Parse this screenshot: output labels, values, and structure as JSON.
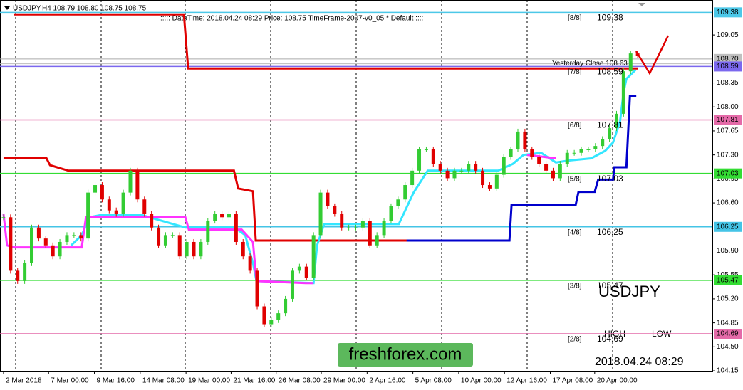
{
  "header": {
    "symbol_line": "USDJPY,H4  108.79 108.80 108.75 108.75",
    "info_line": "::::: DateTime: 2018.04.24 08:29    Price: 108.75    TimeFrame-2007-v0_05    *   Default   ::::"
  },
  "watermark": {
    "symbol": "USDJPY",
    "high": "HIGH",
    "low": "LOW",
    "datetime": "2018.04.24 08:29",
    "brand": "freshforex.com"
  },
  "chart_data": {
    "type": "candlestick",
    "up_color": "#33cc33",
    "down_color": "#e00000",
    "values": [
      106.39,
      105.61,
      105.46,
      105.72,
      106.24,
      106.08,
      105.98,
      105.82,
      106.03,
      106.13,
      106.13,
      106.08,
      106.75,
      106.86,
      106.65,
      106.49,
      106.44,
      106.75,
      107.07,
      106.65,
      106.44,
      106.24,
      105.98,
      106.13,
      106.13,
      105.82,
      106.03,
      105.82,
      106.03,
      106.34,
      106.44,
      106.39,
      106.44,
      106.03,
      105.82,
      105.61,
      105.09,
      104.83,
      104.89,
      104.99,
      105.2,
      105.61,
      105.67,
      105.51,
      106.13,
      106.75,
      106.55,
      106.44,
      106.24,
      106.24,
      106.24,
      106.34,
      105.98,
      106.13,
      106.34,
      106.55,
      106.65,
      106.86,
      107.07,
      107.38,
      107.38,
      107.17,
      107.07,
      106.96,
      107.07,
      107.07,
      107.17,
      107.07,
      106.86,
      106.81,
      107.01,
      107.27,
      107.38,
      107.64,
      107.38,
      107.27,
      107.17,
      107.07,
      106.96,
      107.17,
      107.33,
      107.33,
      107.38,
      107.38,
      107.43,
      107.53,
      107.69,
      107.9,
      108.52,
      108.78,
      108.75
    ],
    "lines": [
      {
        "color": "#e00000",
        "x": [
          1.5,
          25.6,
          26.2,
          90
        ],
        "values": [
          109.35,
          109.35,
          108.56,
          108.56
        ]
      },
      {
        "color": "#e00000",
        "x": [
          0,
          6.1,
          6.6,
          9.2,
          32.7,
          33.3,
          35.4,
          35.8,
          69.3
        ],
        "values": [
          107.25,
          107.25,
          107.15,
          107.07,
          107.07,
          106.81,
          106.77,
          106.05,
          106.05
        ]
      },
      {
        "color": "#0000cc",
        "x": [
          57.2,
          71.8,
          72.1,
          81.2,
          81.6,
          83.9,
          84.4,
          86.5,
          86.7,
          88.4,
          88.9,
          89.8
        ],
        "values": [
          106.05,
          106.05,
          106.57,
          106.57,
          106.76,
          106.76,
          106.94,
          106.94,
          107.12,
          107.12,
          108.16,
          108.16
        ]
      },
      {
        "color": "#33e6ff",
        "x": [
          9.6,
          11.1,
          12.2,
          13.7,
          19.7,
          25.8,
          32.8,
          34.3,
          35.4,
          35.9,
          44.0,
          44.5,
          45.5,
          56.1,
          58.2,
          60.2,
          70.2,
          72.3,
          73.8,
          76.3,
          78.4,
          80.4,
          83.4,
          85.4,
          86.5,
          87.5,
          88.0,
          88.4,
          89.7
        ],
        "values": [
          105.98,
          106.13,
          106.39,
          106.42,
          106.42,
          106.24,
          106.24,
          106.13,
          105.72,
          105.46,
          105.43,
          105.98,
          106.29,
          106.29,
          106.75,
          107.07,
          107.07,
          107.17,
          107.3,
          107.33,
          107.19,
          107.22,
          107.25,
          107.36,
          107.48,
          107.79,
          108.21,
          108.41,
          108.54
        ]
      },
      {
        "color": "#ff33ff",
        "x": [
          0,
          0.5,
          1.5,
          11.1,
          11.7,
          25.8,
          26.3,
          33.8,
          35.4,
          35.9,
          42.9,
          44.0,
          60,
          74.3,
          78.4
        ],
        "values": [
          106.44,
          105.98,
          105.95,
          105.95,
          106.39,
          106.39,
          106.21,
          106.21,
          106.03,
          105.46,
          105.43,
          105.43,
          null,
          107.3,
          107.25
        ]
      }
    ],
    "levels": [
      {
        "name": "[8/8]",
        "value": 109.38,
        "color": "#4cc8e8"
      },
      {
        "name": "[7/8]",
        "value": 108.59,
        "color": "#7b68ee"
      },
      {
        "name": "[6/8]",
        "value": 107.81,
        "color": "#e46aa8"
      },
      {
        "name": "[5/8]",
        "value": 107.03,
        "color": "#33dd33"
      },
      {
        "name": "[4/8]",
        "value": 106.25,
        "color": "#44c4e6"
      },
      {
        "name": "[3/8]",
        "value": 105.47,
        "color": "#33dd33"
      },
      {
        "name": "[2/8]",
        "value": 104.69,
        "color": "#e46aa8"
      }
    ],
    "yesterday_close": {
      "value": 108.63,
      "label": "Yesterday Close 108.63"
    },
    "last_price": {
      "value": 108.7,
      "label": "108.70"
    },
    "xlim": [
      -0.5,
      100.6
    ],
    "xticks": [
      {
        "value": 0,
        "label": "2 Mar 2018"
      },
      {
        "value": 6.4,
        "label": "7 Mar 00:00"
      },
      {
        "value": 12.9,
        "label": "9 Mar 16:00"
      },
      {
        "value": 19.4,
        "label": "14 Mar 08:00"
      },
      {
        "value": 25.9,
        "label": "19 Mar 00:00"
      },
      {
        "value": 32.3,
        "label": "21 Mar 16:00"
      },
      {
        "value": 38.7,
        "label": "26 Mar 08:00"
      },
      {
        "value": 45.1,
        "label": "29 Mar 00:00"
      },
      {
        "value": 51.6,
        "label": "2 Apr 16:00"
      },
      {
        "value": 58.1,
        "label": "5 Apr 08:00"
      },
      {
        "value": 64.6,
        "label": "10 Apr 00:00"
      },
      {
        "value": 71.1,
        "label": "12 Apr 16:00"
      },
      {
        "value": 77.6,
        "label": "17 Apr 08:00"
      },
      {
        "value": 83.9,
        "label": "20 Apr 00:00"
      }
    ],
    "ylim": [
      104.14,
      109.56
    ],
    "yticks": [
      109.05,
      108.35,
      {
        "value": 108,
        "label": "108.00"
      },
      107.65,
      {
        "value": 107.3,
        "label": "107.30"
      },
      106.95,
      {
        "value": 106.6,
        "label": "106.60"
      },
      {
        "value": 105.9,
        "label": "105.90"
      },
      105.55,
      {
        "value": 105.2,
        "label": "105.20"
      },
      104.85,
      {
        "value": 104.5,
        "label": "104.50"
      },
      104.15
    ]
  }
}
